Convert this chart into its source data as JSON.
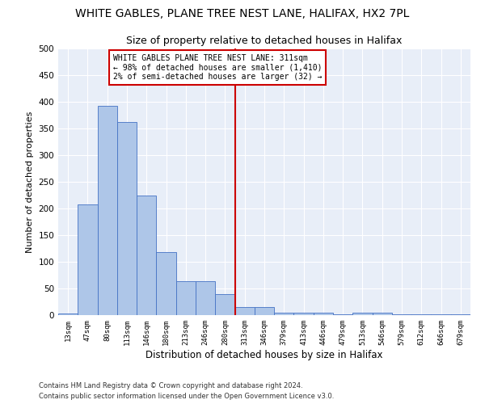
{
  "title": "WHITE GABLES, PLANE TREE NEST LANE, HALIFAX, HX2 7PL",
  "subtitle": "Size of property relative to detached houses in Halifax",
  "xlabel": "Distribution of detached houses by size in Halifax",
  "ylabel": "Number of detached properties",
  "categories": [
    "13sqm",
    "47sqm",
    "80sqm",
    "113sqm",
    "146sqm",
    "180sqm",
    "213sqm",
    "246sqm",
    "280sqm",
    "313sqm",
    "346sqm",
    "379sqm",
    "413sqm",
    "446sqm",
    "479sqm",
    "513sqm",
    "546sqm",
    "579sqm",
    "612sqm",
    "646sqm",
    "679sqm"
  ],
  "values": [
    3,
    207,
    393,
    362,
    224,
    118,
    64,
    64,
    40,
    15,
    15,
    5,
    4,
    4,
    1,
    5,
    5,
    1,
    1,
    1,
    2
  ],
  "bar_color": "#aec6e8",
  "bar_edge_color": "#4472c4",
  "vline_color": "#cc0000",
  "annotation_text": "WHITE GABLES PLANE TREE NEST LANE: 311sqm\n← 98% of detached houses are smaller (1,410)\n2% of semi-detached houses are larger (32) →",
  "annotation_box_color": "#cc0000",
  "ylim": [
    0,
    500
  ],
  "yticks": [
    0,
    50,
    100,
    150,
    200,
    250,
    300,
    350,
    400,
    450,
    500
  ],
  "footer_line1": "Contains HM Land Registry data © Crown copyright and database right 2024.",
  "footer_line2": "Contains public sector information licensed under the Open Government Licence v3.0.",
  "bg_color": "#e8eef8",
  "fig_bg_color": "#ffffff",
  "title_fontsize": 10,
  "subtitle_fontsize": 9,
  "vline_pos": 8.5
}
